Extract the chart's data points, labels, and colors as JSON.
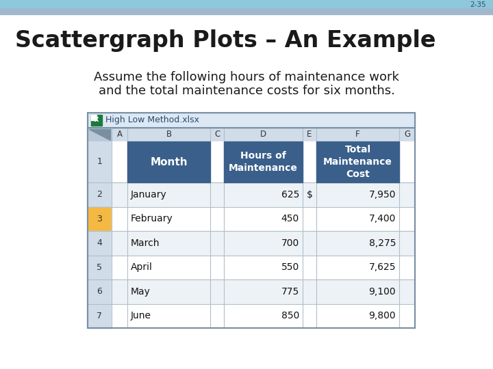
{
  "slide_number": "2-35",
  "title": "Scattergraph Plots – An Example",
  "subtitle_line1": "Assume the following hours of maintenance work",
  "subtitle_line2": "and the total maintenance costs for six months.",
  "background_color": "#ffffff",
  "top_bar_color1": "#8ec8dc",
  "top_bar_color2": "#a0b8cc",
  "excel_title": "High Low Method.xlsx",
  "col_letters": [
    "",
    "A",
    "B",
    "C",
    "D",
    "E",
    "F",
    "G"
  ],
  "header_cell_color": "#3a5f8a",
  "header_text_color": "#ffffff",
  "col_header_bg": "#d0dce8",
  "row_num_bg": "#d0dce8",
  "row_num_selected_bg": "#f5b942",
  "selected_row": 3,
  "row_bg_light": "#edf2f7",
  "row_bg_white": "#ffffff",
  "grid_color": "#b0bec8",
  "excel_bar_color": "#dce8f4",
  "data_rows": [
    [
      "January",
      "625",
      "$",
      "7,950"
    ],
    [
      "February",
      "450",
      "",
      "7,400"
    ],
    [
      "March",
      "700",
      "",
      "8,275"
    ],
    [
      "April",
      "550",
      "",
      "7,625"
    ],
    [
      "May",
      "775",
      "",
      "9,100"
    ],
    [
      "June",
      "850",
      "",
      "9,800"
    ]
  ]
}
